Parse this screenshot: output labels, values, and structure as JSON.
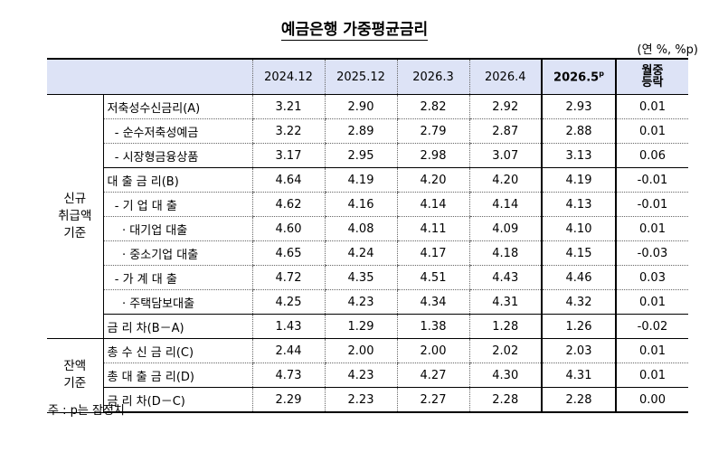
{
  "title": "예금은행 가중평균금리",
  "unit": "(연 %, %p)",
  "headers": [
    "2024.12",
    "2025.12",
    "2026.3",
    "2026.4",
    "2026.5",
    "월중\n등락"
  ],
  "header_sup": "p",
  "groups": [
    {
      "label": "신규\n취급액\n기준",
      "rows": [
        {
          "label": "저축성수신금리(A)",
          "values": [
            "3.21",
            "2.90",
            "2.82",
            "2.92",
            "2.93",
            "0.01"
          ],
          "sep": "dotted"
        },
        {
          "label": "  - 순수저축성예금",
          "values": [
            "3.22",
            "2.89",
            "2.79",
            "2.87",
            "2.88",
            "0.01"
          ],
          "sep": "dotted"
        },
        {
          "label": "  - 시장형금융상품",
          "values": [
            "3.17",
            "2.95",
            "2.98",
            "3.07",
            "3.13",
            "0.06"
          ],
          "sep": "solid"
        },
        {
          "label": "대 출 금 리(B)",
          "values": [
            "4.64",
            "4.19",
            "4.20",
            "4.20",
            "4.19",
            "-0.01"
          ],
          "sep": "dotted"
        },
        {
          "label": "  - 기 업 대 출",
          "values": [
            "4.62",
            "4.16",
            "4.14",
            "4.14",
            "4.13",
            "-0.01"
          ],
          "sep": "dotted"
        },
        {
          "label": "    · 대기업 대출",
          "values": [
            "4.60",
            "4.08",
            "4.11",
            "4.09",
            "4.10",
            "0.01"
          ],
          "sep": "dotted"
        },
        {
          "label": "    · 중소기업 대출",
          "values": [
            "4.65",
            "4.24",
            "4.17",
            "4.18",
            "4.15",
            "-0.03"
          ],
          "sep": "dotted"
        },
        {
          "label": "  - 가 계 대 출",
          "values": [
            "4.72",
            "4.35",
            "4.51",
            "4.43",
            "4.46",
            "0.03"
          ],
          "sep": "dotted"
        },
        {
          "label": "    · 주택담보대출",
          "values": [
            "4.25",
            "4.23",
            "4.34",
            "4.31",
            "4.32",
            "0.01"
          ],
          "sep": "solid"
        },
        {
          "label": "금 리 차(B－A)",
          "values": [
            "1.43",
            "1.29",
            "1.38",
            "1.28",
            "1.26",
            "-0.02"
          ],
          "sep": "solid"
        }
      ]
    },
    {
      "label": "잔액\n기준",
      "rows": [
        {
          "label": "총 수 신 금 리(C)",
          "values": [
            "2.44",
            "2.00",
            "2.00",
            "2.02",
            "2.03",
            "0.01"
          ],
          "sep": "dotted"
        },
        {
          "label": "총 대 출 금 리(D)",
          "values": [
            "4.73",
            "4.23",
            "4.27",
            "4.30",
            "4.31",
            "0.01"
          ],
          "sep": "solid"
        },
        {
          "label": "금 리 차(D－C)",
          "values": [
            "2.29",
            "2.23",
            "2.27",
            "2.28",
            "2.28",
            "0.00"
          ],
          "sep": "last"
        }
      ]
    }
  ],
  "footnote": "주 : p는 잠정치"
}
